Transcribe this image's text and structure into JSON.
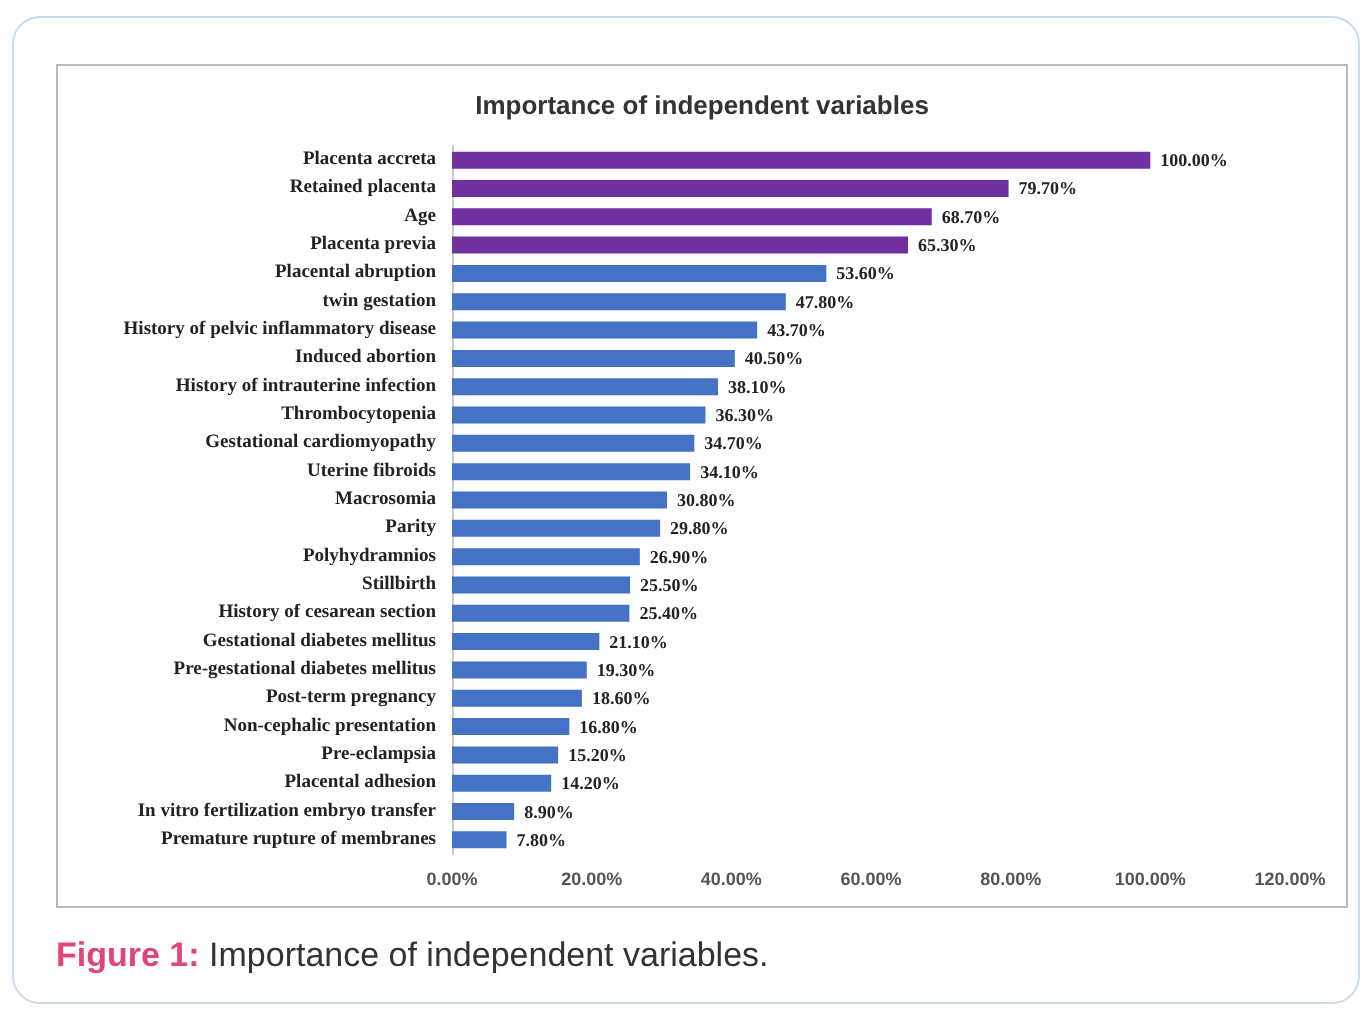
{
  "chart_data": {
    "type": "bar",
    "orientation": "horizontal",
    "title": "Importance of independent variables",
    "categories": [
      "Placenta accreta",
      "Retained placenta",
      "Age",
      "Placenta previa",
      "Placental abruption",
      "twin gestation",
      "History of pelvic inflammatory disease",
      "Induced abortion",
      "History of intrauterine infection",
      "Thrombocytopenia",
      "Gestational cardiomyopathy",
      "Uterine fibroids",
      "Macrosomia",
      "Parity",
      "Polyhydramnios",
      "Stillbirth",
      "History of cesarean section",
      "Gestational diabetes mellitus",
      "Pre-gestational diabetes mellitus",
      "Post-term pregnancy",
      "Non-cephalic presentation",
      "Pre-eclampsia",
      "Placental adhesion",
      "In vitro fertilization embryo transfer",
      "Premature rupture of membranes"
    ],
    "values": [
      100,
      79.7,
      68.7,
      65.3,
      53.6,
      47.8,
      43.7,
      40.5,
      38.1,
      36.3,
      34.7,
      34.1,
      30.8,
      29.8,
      26.9,
      25.5,
      25.4,
      21.1,
      19.3,
      18.6,
      16.8,
      15.2,
      14.2,
      8.9,
      7.8
    ],
    "value_labels": [
      "100.00%",
      "79.70%",
      "68.70%",
      "65.30%",
      "53.60%",
      "47.80%",
      "43.70%",
      "40.50%",
      "38.10%",
      "36.30%",
      "34.70%",
      "34.10%",
      "30.80%",
      "29.80%",
      "26.90%",
      "25.50%",
      "25.40%",
      "21.10%",
      "19.30%",
      "18.60%",
      "16.80%",
      "15.20%",
      "14.20%",
      "8.90%",
      "7.80%"
    ],
    "colors": [
      "#7030a0",
      "#7030a0",
      "#7030a0",
      "#7030a0",
      "#4472c4",
      "#4472c4",
      "#4472c4",
      "#4472c4",
      "#4472c4",
      "#4472c4",
      "#4472c4",
      "#4472c4",
      "#4472c4",
      "#4472c4",
      "#4472c4",
      "#4472c4",
      "#4472c4",
      "#4472c4",
      "#4472c4",
      "#4472c4",
      "#4472c4",
      "#4472c4",
      "#4472c4",
      "#4472c4",
      "#4472c4"
    ],
    "xlim": [
      0,
      120
    ],
    "xticks": [
      {
        "value": 0,
        "label": "0.00%"
      },
      {
        "value": 20,
        "label": "20.00%"
      },
      {
        "value": 40,
        "label": "40.00%"
      },
      {
        "value": 60,
        "label": "60.00%"
      },
      {
        "value": 80,
        "label": "80.00%"
      },
      {
        "value": 100,
        "label": "100.00%"
      },
      {
        "value": 120,
        "label": "120.00%"
      }
    ],
    "grid": false,
    "annotations": [
      "Figure 1: Importance of independent variables."
    ]
  }
}
